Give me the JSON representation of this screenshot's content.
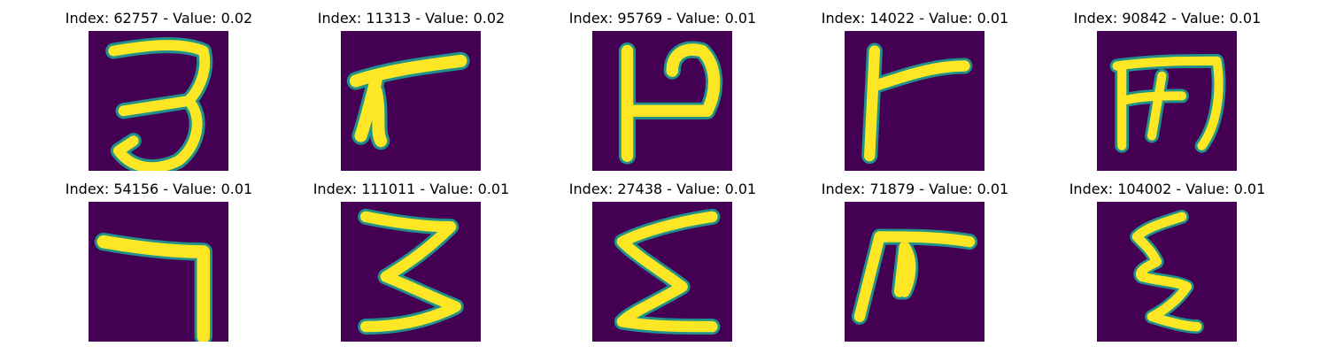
{
  "figure": {
    "colormap": "viridis",
    "background_color": "#440154",
    "stroke_color": "#fde725",
    "edge_color": "#21918c",
    "panels": [
      {
        "index": "62757",
        "value": "0.02",
        "title": "Index: 62757 - Value: 0.02",
        "glyph": "digit-3-like"
      },
      {
        "index": "11313",
        "value": "0.02",
        "title": "Index: 11313 - Value: 0.02",
        "glyph": "slanted-7-like"
      },
      {
        "index": "95769",
        "value": "0.01",
        "title": "Index: 95769 - Value: 0.01",
        "glyph": "P-like"
      },
      {
        "index": "14022",
        "value": "0.01",
        "title": "Index: 14022 - Value: 0.01",
        "glyph": "F-like"
      },
      {
        "index": "90842",
        "value": "0.01",
        "title": "Index: 90842 - Value: 0.01",
        "glyph": "m-like"
      },
      {
        "index": "54156",
        "value": "0.01",
        "title": "Index: 54156 - Value: 0.01",
        "glyph": "digit-7-like"
      },
      {
        "index": "111011",
        "value": "0.01",
        "title": "Index: 111011 - Value: 0.01",
        "glyph": "digit-3-zigzag"
      },
      {
        "index": "27438",
        "value": "0.01",
        "title": "Index: 27438 - Value: 0.01",
        "glyph": "sigma-like"
      },
      {
        "index": "71879",
        "value": "0.01",
        "title": "Index: 71879 - Value: 0.01",
        "glyph": "pi-like"
      },
      {
        "index": "104002",
        "value": "0.01",
        "title": "Index: 104002 - Value: 0.01",
        "glyph": "epsilon-like"
      }
    ]
  }
}
